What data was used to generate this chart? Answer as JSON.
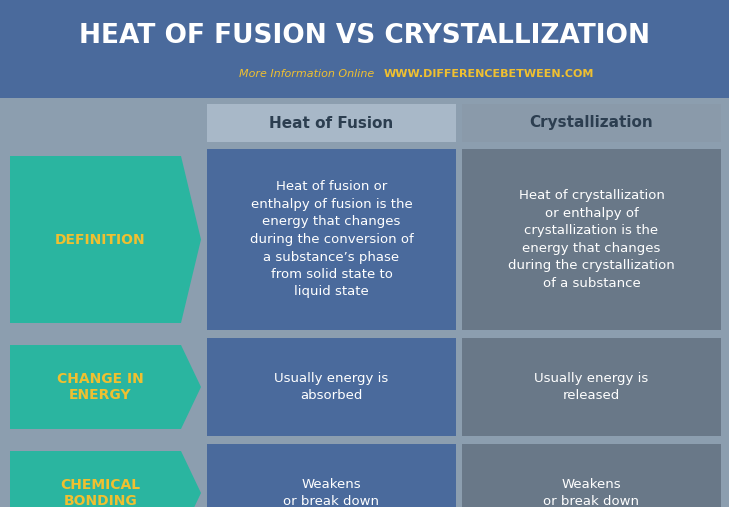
{
  "title": "HEAT OF FUSION VS CRYSTALLIZATION",
  "subtitle_normal": "More Information Online",
  "subtitle_url": "WWW.DIFFERENCEBETWEEN.COM",
  "background_color": "#8c9eaf",
  "header_bg": "#4a6a9c",
  "col1_header": "Heat of Fusion",
  "col2_header": "Crystallization",
  "header_col1_bg": "#a8b8c8",
  "header_col2_bg": "#8a9aaa",
  "row_label_bg": "#2ab5a0",
  "row_label_text_color": "#f0c030",
  "col1_bg": "#4a6a9c",
  "col2_bg": "#697888",
  "cell_text_color": "#ffffff",
  "header_text_color": "#2c3e50",
  "title_color": "#ffffff",
  "subtitle_normal_color": "#f0c030",
  "subtitle_url_color": "#f0c030",
  "rows": [
    {
      "label": "DEFINITION",
      "col1": "Heat of fusion or\nenthalpy of fusion is the\nenergy that changes\nduring the conversion of\na substance’s phase\nfrom solid state to\nliquid state",
      "col2": "Heat of crystallization\nor enthalpy of\ncrystallization is the\nenergy that changes\nduring the crystallization\nof a substance"
    },
    {
      "label": "CHANGE IN\nENERGY",
      "col1": "Usually energy is\nabsorbed",
      "col2": "Usually energy is\nreleased"
    },
    {
      "label": "CHEMICAL\nBONDING",
      "col1": "Weakens\nor break down",
      "col2": "Weakens\nor break down"
    }
  ],
  "title_fontsize": 19,
  "subtitle_fontsize": 8,
  "header_fontsize": 11,
  "label_fontsize": 10,
  "cell_fontsize": 9.5,
  "fig_width": 7.29,
  "fig_height": 5.07,
  "dpi": 100
}
